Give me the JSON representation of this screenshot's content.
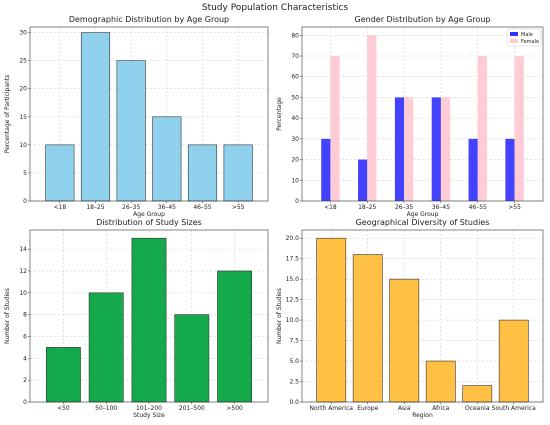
{
  "figure": {
    "suptitle": "Study Population Characteristics"
  },
  "chart_data": [
    {
      "type": "bar",
      "title": "Demographic Distribution by Age Group",
      "xlabel": "Age Group",
      "ylabel": "Percentage of Participants",
      "categories": [
        "<18",
        "18–25",
        "26–35",
        "36–45",
        "46–55",
        ">55"
      ],
      "values": [
        10,
        30,
        25,
        15,
        10,
        10
      ],
      "ylim": [
        0,
        31
      ],
      "yticks": [
        0,
        5,
        10,
        15,
        20,
        25,
        30
      ],
      "ytick_labels": [
        "0",
        "5",
        "10",
        "15",
        "20",
        "25",
        "30"
      ],
      "color": "#87ceeb",
      "grid": true
    },
    {
      "type": "bar",
      "title": "Gender Distribution by Age Group",
      "xlabel": "Age Group",
      "ylabel": "Percentage",
      "categories": [
        "<18",
        "18–25",
        "26–35",
        "36–45",
        "46–55",
        ">55"
      ],
      "series": [
        {
          "name": "Male",
          "values": [
            30,
            20,
            50,
            50,
            30,
            30
          ],
          "color": "#3333ff"
        },
        {
          "name": "Female",
          "values": [
            70,
            80,
            50,
            50,
            70,
            70
          ],
          "color": "#ffc8d2"
        }
      ],
      "ylim": [
        0,
        84
      ],
      "yticks": [
        0,
        10,
        20,
        30,
        40,
        50,
        60,
        70,
        80
      ],
      "ytick_labels": [
        "0",
        "10",
        "20",
        "30",
        "40",
        "50",
        "60",
        "70",
        "80"
      ],
      "legend": "top-right",
      "grid": true
    },
    {
      "type": "bar",
      "title": "Distribution of Study Sizes",
      "xlabel": "Study Size",
      "ylabel": "Number of Studies",
      "categories": [
        "<50",
        "50–100",
        "101–200",
        "201–500",
        ">500"
      ],
      "values": [
        5,
        10,
        15,
        8,
        12
      ],
      "ylim": [
        0,
        15.75
      ],
      "yticks": [
        0,
        2,
        4,
        6,
        8,
        10,
        12,
        14
      ],
      "ytick_labels": [
        "0",
        "2",
        "4",
        "6",
        "8",
        "10",
        "12",
        "14"
      ],
      "color": "#00a23c",
      "grid": true
    },
    {
      "type": "bar",
      "title": "Geographical Diversity of Studies",
      "xlabel": "Region",
      "ylabel": "Number of Studies",
      "categories": [
        "North America",
        "Europe",
        "Asia",
        "Africa",
        "Oceania",
        "South America"
      ],
      "values": [
        20,
        18,
        15,
        5,
        2,
        10
      ],
      "ylim": [
        0,
        21
      ],
      "yticks": [
        0,
        2.5,
        5,
        7.5,
        10,
        12.5,
        15,
        17.5,
        20
      ],
      "ytick_labels": [
        "0.0",
        "2.5",
        "5.0",
        "7.5",
        "10.0",
        "12.5",
        "15.0",
        "17.5",
        "20.0"
      ],
      "color": "#ffbb33",
      "grid": true
    }
  ]
}
